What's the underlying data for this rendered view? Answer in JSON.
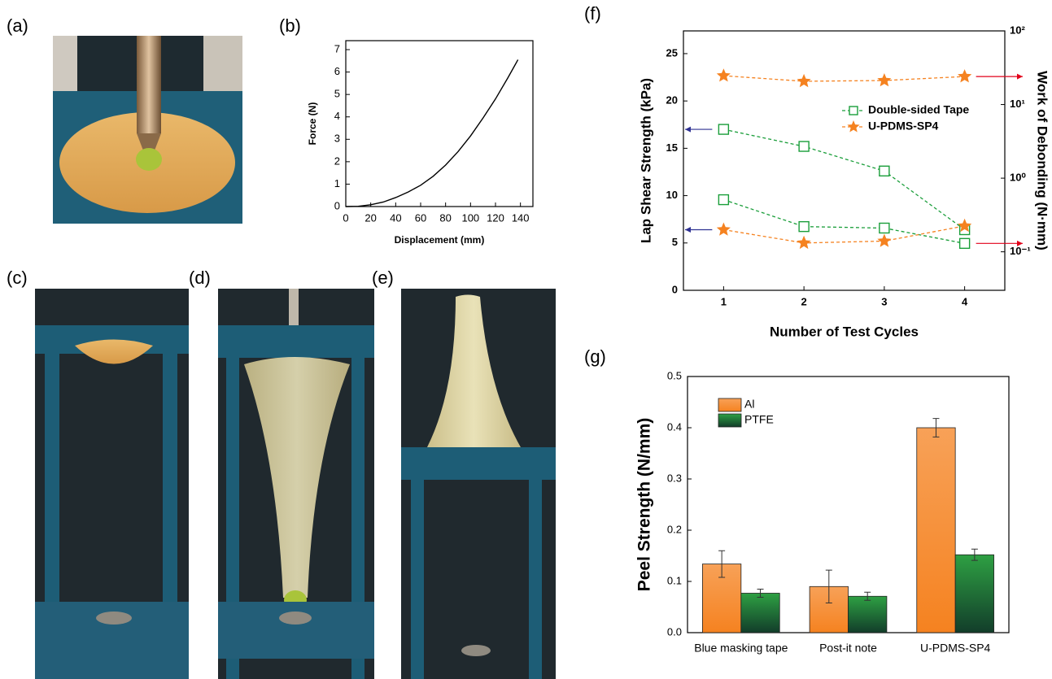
{
  "panel_labels": [
    "(a)",
    "(b)",
    "(c)",
    "(d)",
    "(e)",
    "(f)",
    "(g)"
  ],
  "chart_data": [
    {
      "type": "line",
      "x_label": "Displacement (mm)",
      "y_label": "Force (N)",
      "x": [
        0,
        10,
        20,
        30,
        40,
        50,
        60,
        70,
        80,
        90,
        100,
        110,
        120,
        130,
        138
      ],
      "values": [
        0,
        0.01,
        0.08,
        0.2,
        0.4,
        0.65,
        0.95,
        1.35,
        1.85,
        2.45,
        3.15,
        3.95,
        4.8,
        5.75,
        6.55
      ],
      "color": "#000000",
      "xlim": [
        0,
        150
      ],
      "xticks": [
        0,
        20,
        40,
        60,
        80,
        100,
        120,
        140
      ],
      "ylim": [
        0,
        7.4
      ],
      "yticks": [
        0,
        1,
        2,
        3,
        4,
        5,
        6,
        7
      ]
    },
    {
      "type": "line",
      "x_label": "Number of Test Cycles",
      "y_label": "Lap Shear Strength (kPa)",
      "y2_label": "Work of Debonding (N·mm)",
      "y_color": "#2e3192",
      "y2_color": "#e2001a",
      "x": [
        1,
        2,
        3,
        4
      ],
      "series": [
        {
          "name": "Double-sided Tape",
          "color": "#1a9e3a",
          "marker": "square",
          "line_style": "dashed",
          "values": [
            17.0,
            15.2,
            12.6,
            6.4
          ]
        },
        {
          "name": "Double-sided Tape",
          "color": "#1a9e3a",
          "marker": "square",
          "line_style": "dashed",
          "axis": "y2",
          "values": [
            0.51,
            0.22,
            0.21,
            0.13
          ]
        },
        {
          "name": "U-PDMS-SP4",
          "color": "#f58220",
          "marker": "star",
          "line_style": "dashed",
          "axis": "y2",
          "values": [
            24.6,
            20.7,
            21.2,
            24
          ]
        },
        {
          "name": "U-PDMS-SP4",
          "color": "#f58220",
          "marker": "star",
          "line_style": "dashed",
          "values": [
            6.4,
            5.0,
            5.2,
            6.8
          ]
        }
      ],
      "xlim": [
        0.5,
        4.5
      ],
      "xticks": [
        1,
        2,
        3,
        4
      ],
      "ylim": [
        0,
        27.4
      ],
      "yticks": [
        0,
        5,
        10,
        15,
        20,
        25
      ],
      "y2_log": true,
      "y2lim": [
        0.03,
        100
      ],
      "y2ticks": [
        {
          "value": 0.1,
          "label": "10⁻¹"
        },
        {
          "value": 1,
          "label": "10⁰"
        },
        {
          "value": 10,
          "label": "10¹"
        },
        {
          "value": 100,
          "label": "10²"
        }
      ],
      "legend": "upper-right"
    },
    {
      "type": "bar",
      "y_label": "Peel Strength (N/mm)",
      "categories": [
        "Blue masking tape",
        "Post-it note",
        "U-PDMS-SP4"
      ],
      "series": [
        {
          "name": "Al",
          "color": "#f58220",
          "values": [
            0.134,
            0.09,
            0.4
          ],
          "errors": [
            0.026,
            0.032,
            0.018
          ]
        },
        {
          "name": "PTFE",
          "color": "#2ea043",
          "values": [
            0.077,
            0.071,
            0.152
          ],
          "errors": [
            0.008,
            0.008,
            0.011
          ]
        }
      ],
      "ylim": [
        0,
        0.5
      ],
      "yticks": [
        {
          "value": 0,
          "label": "0.0"
        },
        0.1,
        0.2,
        0.3,
        0.4,
        0.5
      ],
      "legend": "upper-left"
    }
  ]
}
